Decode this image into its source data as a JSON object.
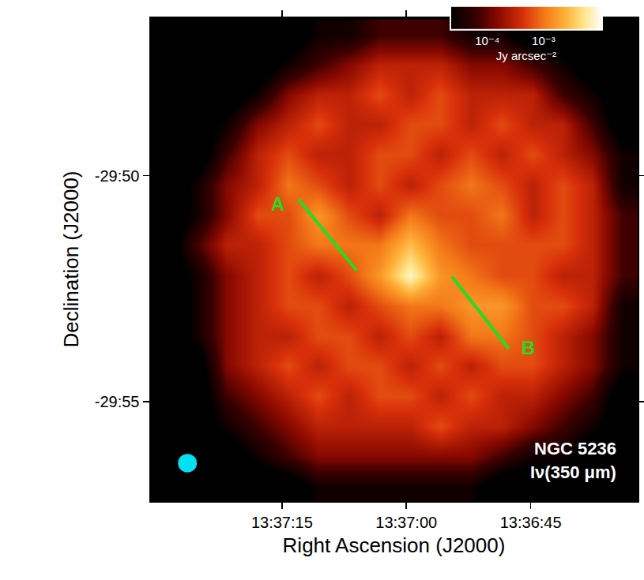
{
  "chart_data": {
    "type": "heatmap",
    "title": "NGC 5236",
    "subtitle": "Iν(350 μm)",
    "x_label": "Right Ascension (J2000)",
    "y_label": "Declination (J2000)",
    "xlim": [
      90.9,
      32.1
    ],
    "ylim": [
      -1797.2,
      -1786.5
    ],
    "xticks": [
      {
        "value": 75,
        "label": "13:37:15"
      },
      {
        "value": 60,
        "label": "13:37:00"
      },
      {
        "value": 45,
        "label": "13:36:45"
      }
    ],
    "yticks": [
      {
        "value": -1790,
        "label": "-29:50"
      },
      {
        "value": -1795,
        "label": "-29:55"
      }
    ],
    "x": [
      89.05,
      85.35,
      81.65,
      77.94,
      74.24,
      70.63,
      66.93,
      63.22,
      59.52,
      55.91,
      52.21,
      48.5,
      44.8,
      41.19,
      37.49,
      33.78
    ],
    "y": [
      -1786.88,
      -1787.54,
      -1788.2,
      -1788.88,
      -1789.54,
      -1790.22,
      -1790.88,
      -1791.54,
      -1792.22,
      -1792.88,
      -1793.56,
      -1794.22,
      -1794.88,
      -1795.56,
      -1796.22,
      -1796.9
    ],
    "cells": [
      [
        1e-05,
        1e-05,
        1e-05,
        1e-05,
        1e-05,
        3e-05,
        3e-05,
        7e-05,
        7e-05,
        7e-05,
        3e-05,
        3e-05,
        1e-05,
        1e-05,
        1e-05,
        1e-05
      ],
      [
        1e-05,
        1e-05,
        1e-05,
        1e-05,
        3e-05,
        7e-05,
        0.00015,
        0.0003,
        0.0003,
        0.0003,
        0.00015,
        0.00015,
        7e-05,
        3e-05,
        1e-05,
        1e-05
      ],
      [
        1e-05,
        1e-05,
        1e-05,
        3e-05,
        0.00015,
        0.0003,
        0.0003,
        0.0006,
        0.0003,
        0.0006,
        0.0003,
        0.0003,
        0.0003,
        7e-05,
        3e-05,
        1e-05
      ],
      [
        1e-05,
        1e-05,
        3e-05,
        0.00015,
        0.0003,
        0.0006,
        0.0003,
        0.0003,
        0.0006,
        0.0006,
        0.0003,
        0.0006,
        0.0003,
        0.0003,
        7e-05,
        1e-05
      ],
      [
        1e-05,
        1e-05,
        7e-05,
        0.0003,
        0.0006,
        0.0003,
        0.0003,
        0.0006,
        0.0006,
        0.0003,
        0.0006,
        0.0003,
        0.0006,
        0.0003,
        0.00015,
        3e-05
      ],
      [
        1e-05,
        3e-05,
        0.00015,
        0.0003,
        0.001,
        0.0006,
        0.0003,
        0.0006,
        0.0003,
        0.0006,
        0.001,
        0.0006,
        0.0003,
        0.0006,
        0.0003,
        3e-05
      ],
      [
        1e-05,
        3e-05,
        0.00015,
        0.0006,
        0.0006,
        0.0016,
        0.0006,
        0.0003,
        0.001,
        0.0006,
        0.0006,
        0.001,
        0.0003,
        0.0006,
        0.0003,
        7e-05
      ],
      [
        1e-05,
        7e-05,
        0.0003,
        0.0003,
        0.0006,
        0.001,
        0.001,
        0.001,
        0.003,
        0.001,
        0.0006,
        0.0006,
        0.0006,
        0.0006,
        0.0003,
        7e-05
      ],
      [
        1e-05,
        3e-05,
        0.00015,
        0.0003,
        0.0006,
        0.0003,
        0.0006,
        0.0016,
        0.008,
        0.0016,
        0.001,
        0.0006,
        0.0006,
        0.0003,
        0.0003,
        7e-05
      ],
      [
        1e-05,
        3e-05,
        0.00015,
        0.0003,
        0.0006,
        0.0006,
        0.0003,
        0.0006,
        0.001,
        0.001,
        0.0016,
        0.0016,
        0.0006,
        0.0006,
        0.0003,
        3e-05
      ],
      [
        1e-05,
        3e-05,
        0.00015,
        0.0003,
        0.0003,
        0.0006,
        0.0006,
        0.0003,
        0.0006,
        0.0003,
        0.001,
        0.001,
        0.0006,
        0.0003,
        0.00015,
        3e-05
      ],
      [
        1e-05,
        1e-05,
        0.00015,
        0.0003,
        0.0006,
        0.0003,
        0.0006,
        0.0006,
        0.0003,
        0.0006,
        0.0003,
        0.0006,
        0.0006,
        0.0003,
        0.00015,
        3e-05
      ],
      [
        1e-05,
        1e-05,
        7e-05,
        0.00015,
        0.0003,
        0.0006,
        0.0003,
        0.0006,
        0.0006,
        0.0003,
        0.0006,
        0.0003,
        0.0003,
        0.00015,
        7e-05,
        1e-05
      ],
      [
        1e-05,
        1e-05,
        3e-05,
        7e-05,
        0.00015,
        0.0003,
        0.0003,
        0.0003,
        0.0003,
        0.0006,
        0.0003,
        0.0003,
        0.00015,
        7e-05,
        3e-05,
        1e-05
      ],
      [
        1e-05,
        1e-05,
        1e-05,
        3e-05,
        7e-05,
        0.00015,
        0.00015,
        0.00015,
        0.00015,
        0.00015,
        0.00015,
        7e-05,
        3e-05,
        3e-05,
        1e-05,
        1e-05
      ],
      [
        1e-05,
        1e-05,
        1e-05,
        1e-05,
        1e-05,
        3e-05,
        3e-05,
        3e-05,
        3e-05,
        3e-05,
        3e-05,
        1e-05,
        1e-05,
        1e-05,
        1e-05,
        1e-05
      ]
    ],
    "colorbar": {
      "label": "Jy arcsec⁻²",
      "range": [
        2.2e-05,
        0.011
      ],
      "log": true,
      "ticks": [
        {
          "value": 0.0001,
          "label": "10⁻⁴"
        },
        {
          "value": 0.001,
          "label": "10⁻³"
        }
      ]
    },
    "lines": [
      {
        "label": "A",
        "x": [
          73.0,
          65.98
        ],
        "y": [
          -1790.53,
          -1792.1
        ],
        "label_x": 75.47,
        "label_y": -1790.63,
        "color": "#22dd22"
      },
      {
        "label": "B",
        "x": [
          54.49,
          47.65
        ],
        "y": [
          -1792.24,
          -1793.83
        ],
        "label_x": 45.28,
        "label_y": -1793.8,
        "color": "#22dd22"
      }
    ],
    "beam": {
      "x": 86.4,
      "y": -1796.36,
      "width": 2.28,
      "height": 0.41,
      "color": "#00e0f0"
    }
  }
}
